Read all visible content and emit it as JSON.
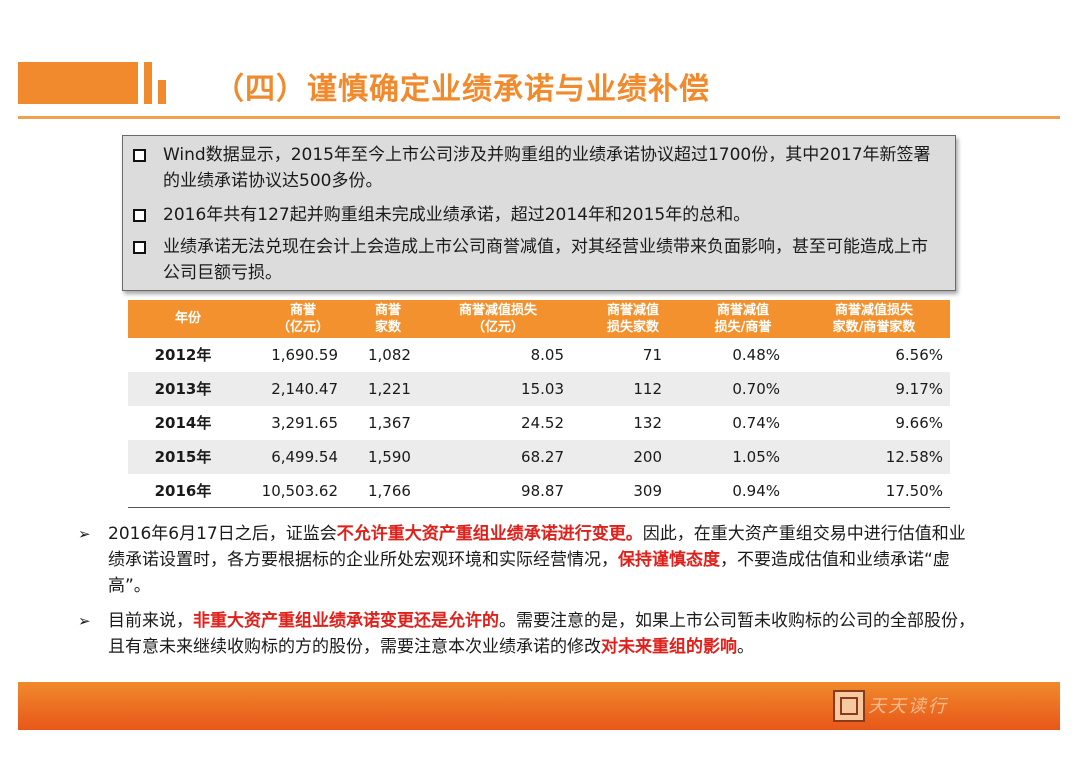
{
  "title": "（四）谨慎确定业绩承诺与业绩补偿",
  "box_bullets": [
    "Wind数据显示，2015年至今上市公司涉及并购重组的业绩承诺协议超过1700份，其中2017年新签署的业绩承诺协议达500多份。",
    "2016年共有127起并购重组未完成业绩承诺，超过2014年和2015年的总和。",
    "业绩承诺无法兑现在会计上会造成上市公司商誉减值，对其经营业绩带来负面影响，甚至可能造成上市公司巨额亏损。"
  ],
  "table": {
    "headers": [
      "年份",
      "商誉\n（亿元）",
      "商誉\n家数",
      "商誉减值损失\n（亿元）",
      "商誉减值\n损失家数",
      "商誉减值\n损失/商誉",
      "商誉减值损失\n家数/商誉家数"
    ],
    "rows": [
      [
        "2012年",
        "1,690.59",
        "1,082",
        "8.05",
        "71",
        "0.48%",
        "6.56%"
      ],
      [
        "2013年",
        "2,140.47",
        "1,221",
        "15.03",
        "112",
        "0.70%",
        "9.17%"
      ],
      [
        "2014年",
        "3,291.65",
        "1,367",
        "24.52",
        "132",
        "0.74%",
        "9.66%"
      ],
      [
        "2015年",
        "6,499.54",
        "1,590",
        "68.27",
        "200",
        "1.05%",
        "12.58%"
      ],
      [
        "2016年",
        "10,503.62",
        "1,766",
        "98.87",
        "309",
        "0.94%",
        "17.50%"
      ]
    ]
  },
  "arrow_bullets": [
    {
      "p1": "2016年6月17日之后，证监会",
      "r1": "不允许重大资产重组业绩承诺进行变更。",
      "p2": "因此，在重大资产重组交易中进行估值和业绩承诺设置时，各方要根据标的企业所处宏观环境和实际经营情况，",
      "r2": "保持谨慎态度",
      "p3": "，不要造成估值和业绩承诺“虚高”。"
    },
    {
      "p1": "目前来说，",
      "r1": "非重大资产重组业绩承诺变更还是允许的",
      "p2": "。需要注意的是，如果上市公司暂未收购标的公司的全部股份，且有意未来继续收购标的方的股份，需要注意本次业绩承诺的修改",
      "r2": "对未来重组的影响",
      "p3": "。"
    }
  ],
  "footer": {
    "logo_text": "天天读行"
  },
  "colors": {
    "accent": "#f08a2c",
    "highlight": "#e0201b",
    "box_bg": "#dcdcdc"
  }
}
